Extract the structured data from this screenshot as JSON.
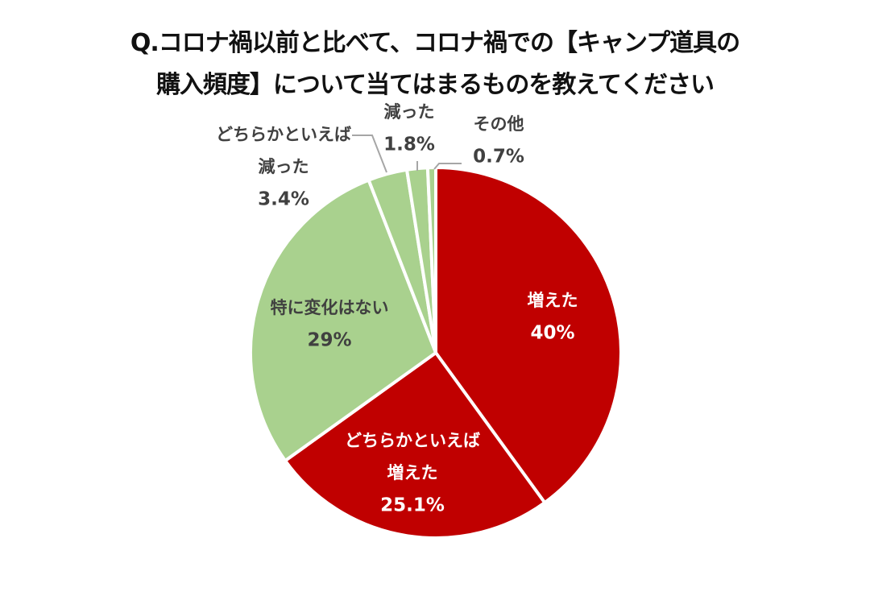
{
  "chart_data": {
    "type": "pie",
    "title_lines": [
      "Q.コロナ禍以前と比べて、コロナ禍での【キャンプ道具の",
      "購入頻度】について当てはまるものを教えてください"
    ],
    "slices": [
      {
        "label_lines": [
          "増えた"
        ],
        "value": 40,
        "value_label": "40%",
        "color": "#c00000",
        "label_color": "#ffffff"
      },
      {
        "label_lines": [
          "どちらかといえば",
          "増えた"
        ],
        "value": 25.1,
        "value_label": "25.1%",
        "color": "#c00000",
        "label_color": "#ffffff"
      },
      {
        "label_lines": [
          "特に変化はない"
        ],
        "value": 29,
        "value_label": "29%",
        "color": "#a9d18e",
        "label_color": "#404040"
      },
      {
        "label_lines": [
          "どちらかといえば",
          "減った"
        ],
        "value": 3.4,
        "value_label": "3.4%",
        "color": "#a9d18e",
        "label_color": "#404040"
      },
      {
        "label_lines": [
          "減った"
        ],
        "value": 1.8,
        "value_label": "1.8%",
        "color": "#a9d18e",
        "label_color": "#404040"
      },
      {
        "label_lines": [
          "その他"
        ],
        "value": 0.7,
        "value_label": "0.7%",
        "color": "#a9d18e",
        "label_color": "#404040"
      }
    ],
    "start_angle_deg": 0,
    "direction": "clockwise",
    "legend": "none"
  }
}
